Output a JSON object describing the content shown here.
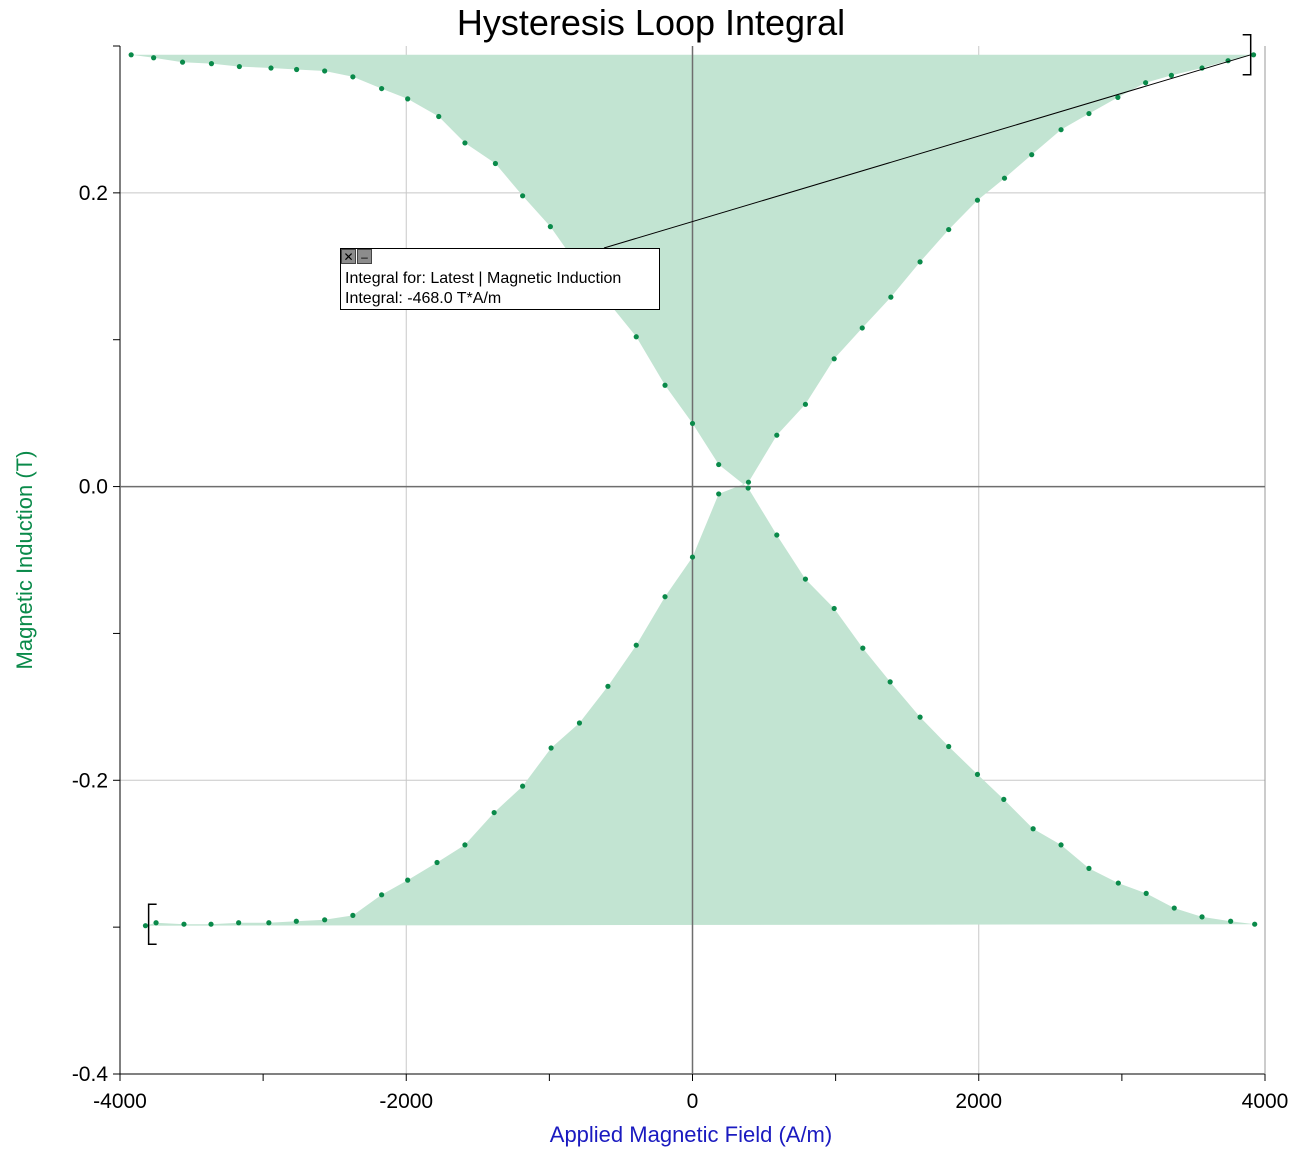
{
  "chart_data": {
    "type": "scatter",
    "title": "Hysteresis Loop Integral",
    "xlabel": "Applied Magnetic Field (A/m)",
    "ylabel": "Magnetic Induction (T)",
    "xlim": [
      -4000,
      4000
    ],
    "ylim": [
      -0.4,
      0.3
    ],
    "x_ticks": [
      -4000,
      -2000,
      0,
      2000,
      4000
    ],
    "x_tick_labels": [
      "-4000",
      "-2000",
      "0",
      "2000",
      "4000"
    ],
    "y_ticks": [
      -0.4,
      -0.2,
      0.0,
      0.2
    ],
    "y_tick_labels": [
      "-0.4",
      "-0.2",
      "0.0",
      "0.2"
    ],
    "grid": true,
    "colors": {
      "points": "#0a8a4a",
      "fill": "#c2e4d2",
      "xlabel": "#1a1ac0",
      "ylabel": "#0a8a4a"
    },
    "series": [
      {
        "x": [
          -3822,
          -3748,
          -3553,
          -3364,
          -3171,
          -2960,
          -2768,
          -2570,
          -2373,
          -2172,
          -1990,
          -1785,
          -1590,
          -1386,
          -1187,
          -988,
          -790,
          -591,
          -393,
          -192,
          0,
          183,
          391,
          589,
          789,
          990,
          1186,
          1386,
          1590,
          1790,
          1991,
          2180,
          2370,
          2575,
          2770,
          2972,
          3166,
          3346,
          3560,
          3742,
          3920
        ],
        "y": [
          -0.299,
          -0.297,
          -0.298,
          -0.298,
          -0.297,
          -0.297,
          -0.296,
          -0.295,
          -0.292,
          -0.278,
          -0.268,
          -0.256,
          -0.244,
          -0.222,
          -0.204,
          -0.178,
          -0.161,
          -0.136,
          -0.108,
          -0.075,
          -0.048,
          -0.005,
          0.003,
          0.035,
          0.056,
          0.087,
          0.108,
          0.129,
          0.153,
          0.175,
          0.195,
          0.21,
          0.226,
          0.243,
          0.254,
          0.265,
          0.275,
          0.28,
          0.285,
          0.29,
          0.294
        ]
      },
      {
        "x": [
          -3922,
          -3765,
          -3563,
          -3361,
          -3166,
          -2945,
          -2766,
          -2570,
          -2373,
          -2172,
          -1990,
          -1773,
          -1590,
          -1377,
          -1187,
          -993,
          -790,
          -584,
          -393,
          -192,
          0,
          183,
          389,
          589,
          789,
          990,
          1190,
          1381,
          1590,
          1790,
          1991,
          2175,
          2380,
          2575,
          2770,
          2975,
          3170,
          3366,
          3560,
          3760,
          3928
        ],
        "y": [
          0.294,
          0.292,
          0.289,
          0.288,
          0.286,
          0.285,
          0.284,
          0.283,
          0.279,
          0.271,
          0.264,
          0.252,
          0.234,
          0.22,
          0.198,
          0.177,
          0.149,
          0.125,
          0.102,
          0.069,
          0.043,
          0.015,
          -0.001,
          -0.033,
          -0.063,
          -0.083,
          -0.11,
          -0.133,
          -0.157,
          -0.177,
          -0.196,
          -0.213,
          -0.233,
          -0.244,
          -0.26,
          -0.27,
          -0.277,
          -0.287,
          -0.293,
          -0.296,
          -0.298
        ]
      }
    ],
    "brackets": [
      {
        "x": -3800,
        "y": -0.298
      },
      {
        "x": 3900,
        "y": 0.294
      }
    ],
    "annotation": {
      "line1": "Integral for: Latest | Magnetic Induction",
      "line2": "Integral: -468.0 T*A/m",
      "close_symbol": "✕",
      "minimize_symbol": "–"
    }
  }
}
